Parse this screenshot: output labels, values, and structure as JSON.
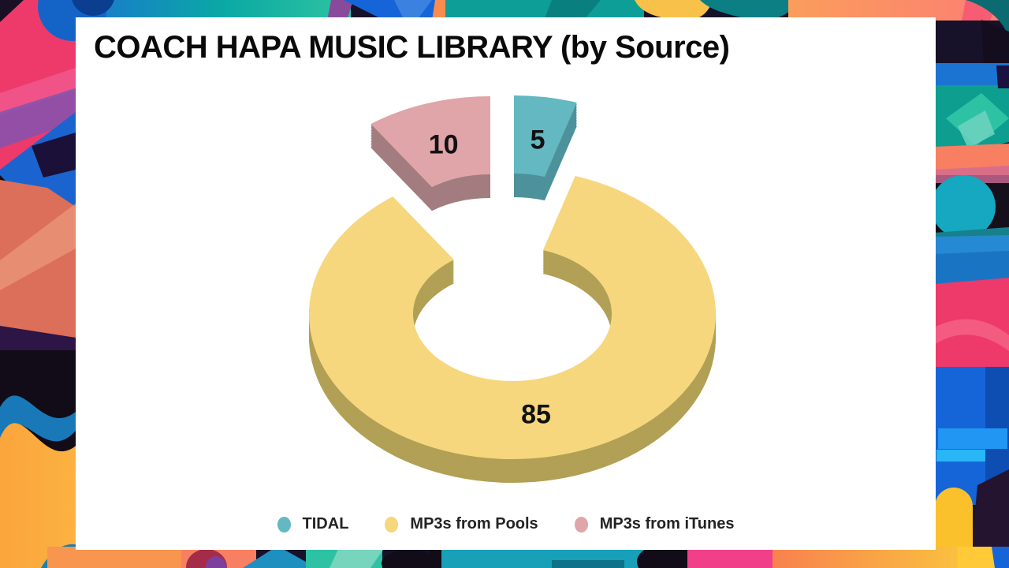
{
  "title": "COACH HAPA MUSIC LIBRARY (by Source)",
  "chart_data": {
    "type": "pie",
    "subtype": "3d-exploded-donut",
    "title": "COACH HAPA MUSIC LIBRARY (by Source)",
    "total": 100,
    "start_angle_deg": 0,
    "direction": "clockwise",
    "legend_position": "bottom",
    "label_color": "#111111",
    "background_color": "#ffffff",
    "series": [
      {
        "label": "TIDAL",
        "value": 5,
        "value_label": "5",
        "color": "#63b8c1",
        "side_color": "#4d919b",
        "exploded": true
      },
      {
        "label": "MP3s from Pools",
        "value": 85,
        "value_label": "85",
        "color": "#f6d77d",
        "side_color": "#b1a055",
        "exploded": false
      },
      {
        "label": "MP3s from iTunes",
        "value": 10,
        "value_label": "10",
        "color": "#dfa5a9",
        "side_color": "#a37c80",
        "exploded": true
      }
    ]
  }
}
